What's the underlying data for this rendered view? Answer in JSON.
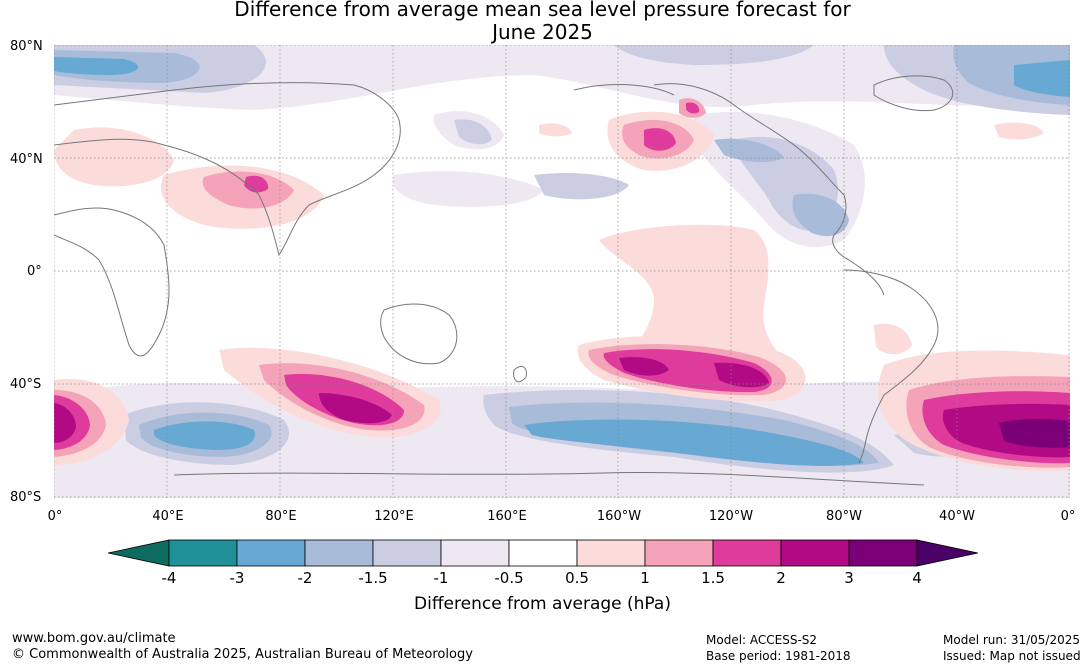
{
  "title_line1": "Difference from average mean sea level pressure forecast for",
  "title_line2": "June 2025",
  "lat_labels": [
    "80°N",
    "40°N",
    "0°",
    "40°S",
    "80°S"
  ],
  "lon_labels": [
    "0°",
    "40°E",
    "80°E",
    "120°E",
    "160°E",
    "160°W",
    "120°W",
    "80°W",
    "40°W",
    "0°"
  ],
  "colorbar": {
    "ticks": [
      "-4",
      "-3",
      "-2",
      "-1.5",
      "-1",
      "-0.5",
      "0.5",
      "1",
      "1.5",
      "2",
      "3",
      "4"
    ],
    "colors": [
      "#0e6b60",
      "#1e9098",
      "#67a9d2",
      "#a8bcd9",
      "#cbcde3",
      "#ede8f2",
      "#ffffff",
      "#fcdbdb",
      "#f4a3b9",
      "#de3b9c",
      "#b10a84",
      "#7b0077",
      "#4a0066"
    ],
    "label": "Difference from average (hPa)"
  },
  "footer": {
    "url": "www.bom.gov.au/climate",
    "copyright": "© Commonwealth of Australia 2025, Australian Bureau of Meteorology",
    "model": "Model: ACCESS-S2",
    "base_period": "Base period: 1981-2018",
    "model_run": "Model run: 31/05/2025",
    "issued": "Issued: Map not issued"
  }
}
